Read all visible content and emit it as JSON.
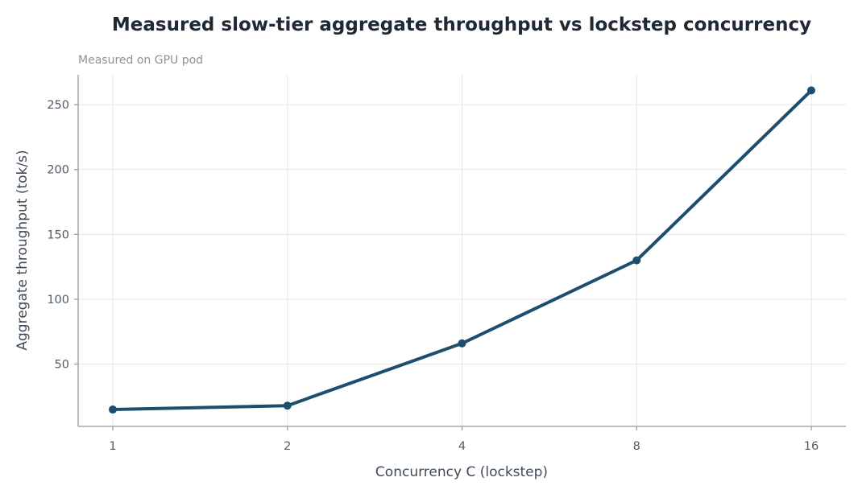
{
  "chart_data": {
    "type": "line",
    "title": "Measured slow-tier aggregate throughput vs lockstep concurrency",
    "subtitle": "Measured on GPU pod",
    "xlabel": "Concurrency C (lockstep)",
    "ylabel": "Aggregate throughput (tok/s)",
    "x": [
      1,
      2,
      4,
      8,
      16
    ],
    "x_tick_labels": [
      "1",
      "2",
      "4",
      "8",
      "16"
    ],
    "x_scale": "log2",
    "y_ticks": [
      50,
      100,
      150,
      200,
      250
    ],
    "ylim": [
      2,
      273
    ],
    "grid": true,
    "series": [
      {
        "values": [
          15,
          18,
          66,
          130,
          261
        ],
        "color": "#1d4e6e"
      }
    ]
  }
}
